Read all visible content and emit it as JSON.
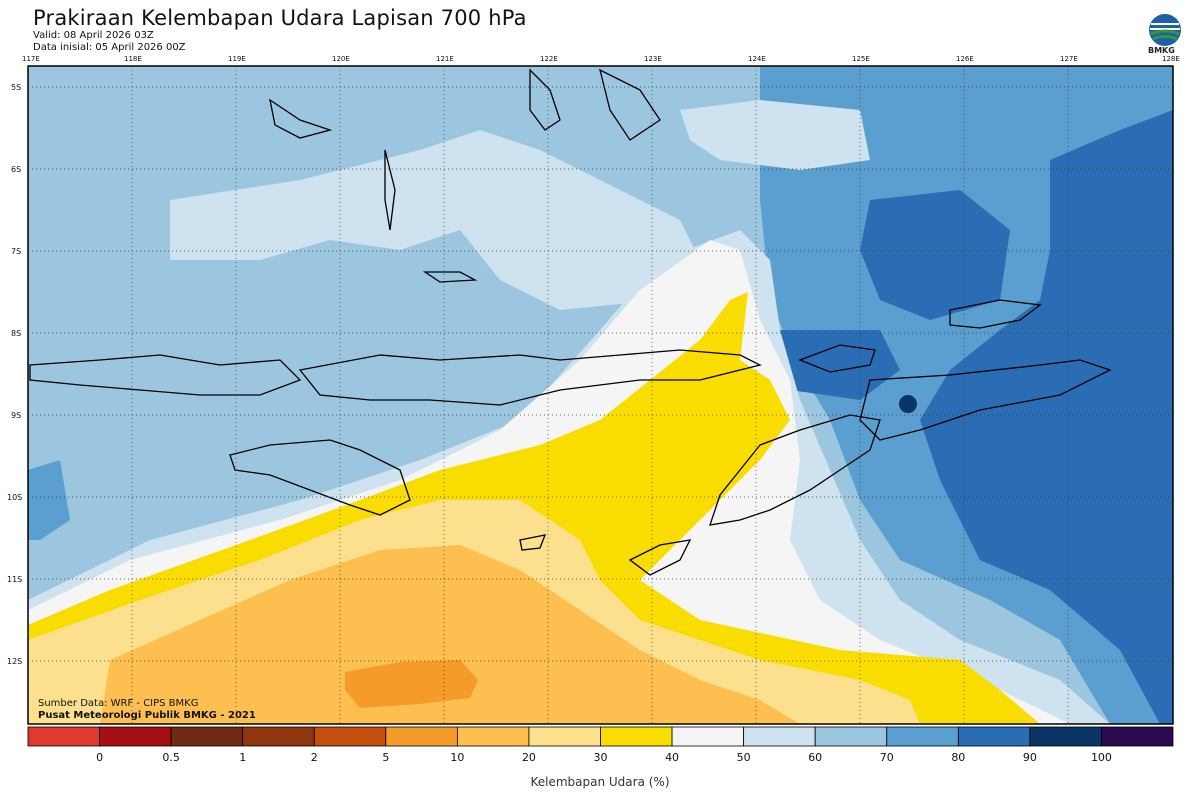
{
  "header": {
    "title": "Prakiraan Kelembapan Udara Lapisan 700 hPa",
    "valid": "Valid: 08 April 2026 03Z",
    "initial": "Data inisial: 05 April 2026 00Z",
    "logo_text": "BMKG"
  },
  "map": {
    "lon_labels": [
      "117E",
      "118E",
      "119E",
      "120E",
      "121E",
      "122E",
      "123E",
      "124E",
      "125E",
      "126E",
      "127E",
      "128E"
    ],
    "lat_labels": [
      "5S",
      "6S",
      "7S",
      "8S",
      "9S",
      "10S",
      "11S",
      "12S"
    ]
  },
  "footer": {
    "source": "Sumber Data: WRF - CIPS BMKG",
    "org": "Pusat Meteorologi Publik BMKG - 2021"
  },
  "colorbar": {
    "title": "Kelembapan Udara (%)",
    "ticks": [
      "0",
      "0.5",
      "1",
      "2",
      "5",
      "10",
      "20",
      "30",
      "40",
      "50",
      "60",
      "70",
      "80",
      "90",
      "100"
    ],
    "colors": [
      "#e03a2f",
      "#a30f15",
      "#6e2a12",
      "#8f3510",
      "#c44e0c",
      "#f59b2a",
      "#fdbf50",
      "#fde08e",
      "#f9dd00",
      "#f5f5f5",
      "#cfe2ef",
      "#9cc6e0",
      "#5a9fcf",
      "#2a6db5",
      "#0b3566",
      "#2b0a4f"
    ]
  }
}
